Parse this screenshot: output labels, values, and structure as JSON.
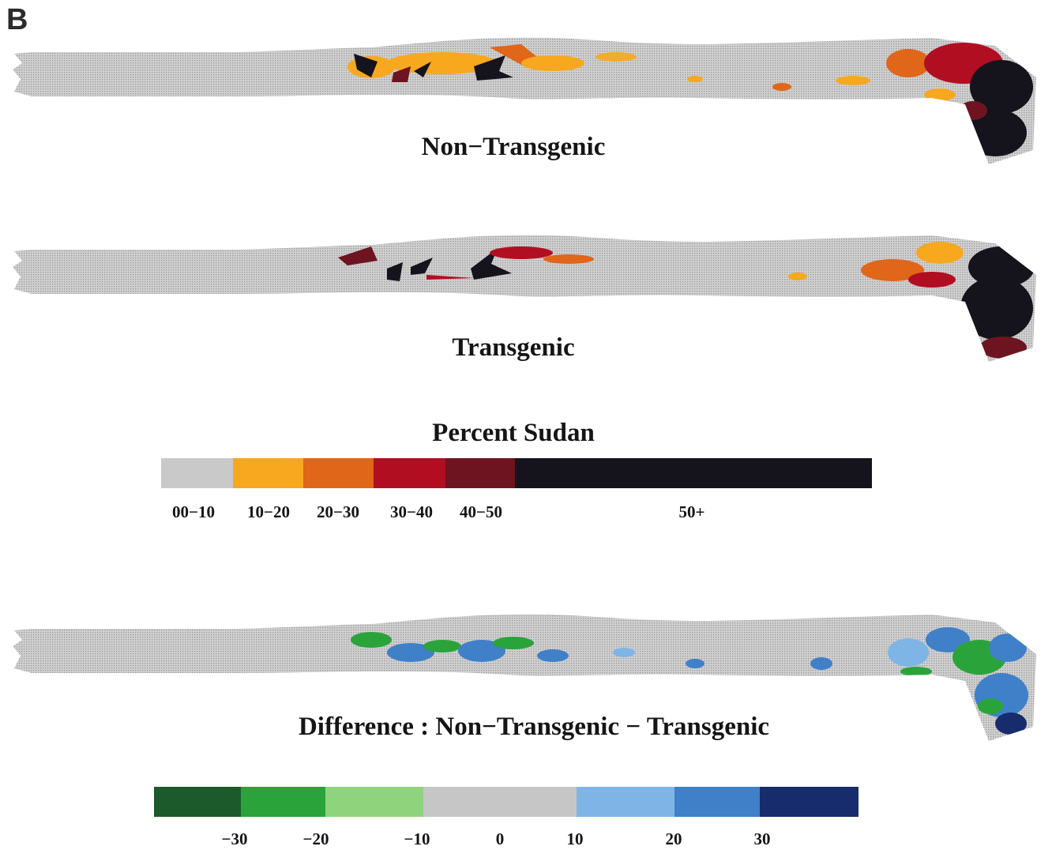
{
  "panel_label": "B",
  "maps": [
    {
      "title": "Non−Transgenic"
    },
    {
      "title": "Transgenic"
    },
    {
      "title": "Difference : Non−Transgenic − Transgenic"
    }
  ],
  "legend_sudan": {
    "title": "Percent Sudan",
    "bins": [
      {
        "label": "00−10",
        "color": "#c9c9c9"
      },
      {
        "label": "10−20",
        "color": "#f7a81e"
      },
      {
        "label": "20−30",
        "color": "#e0661a"
      },
      {
        "label": "30−40",
        "color": "#b10e22"
      },
      {
        "label": "40−50",
        "color": "#6e1420"
      },
      {
        "label": "50+",
        "color": "#15131b"
      }
    ]
  },
  "legend_difference": {
    "bins": [
      {
        "color": "#1d5a2b"
      },
      {
        "color": "#2aa43a"
      },
      {
        "color": "#8fd37d"
      },
      {
        "color": "#c6c6c6"
      },
      {
        "color": "#7fb5e6"
      },
      {
        "color": "#3f80c9"
      },
      {
        "color": "#162c6c"
      }
    ],
    "tick_labels": [
      "−30",
      "−20",
      "−10",
      "0",
      "10",
      "20",
      "30"
    ]
  }
}
